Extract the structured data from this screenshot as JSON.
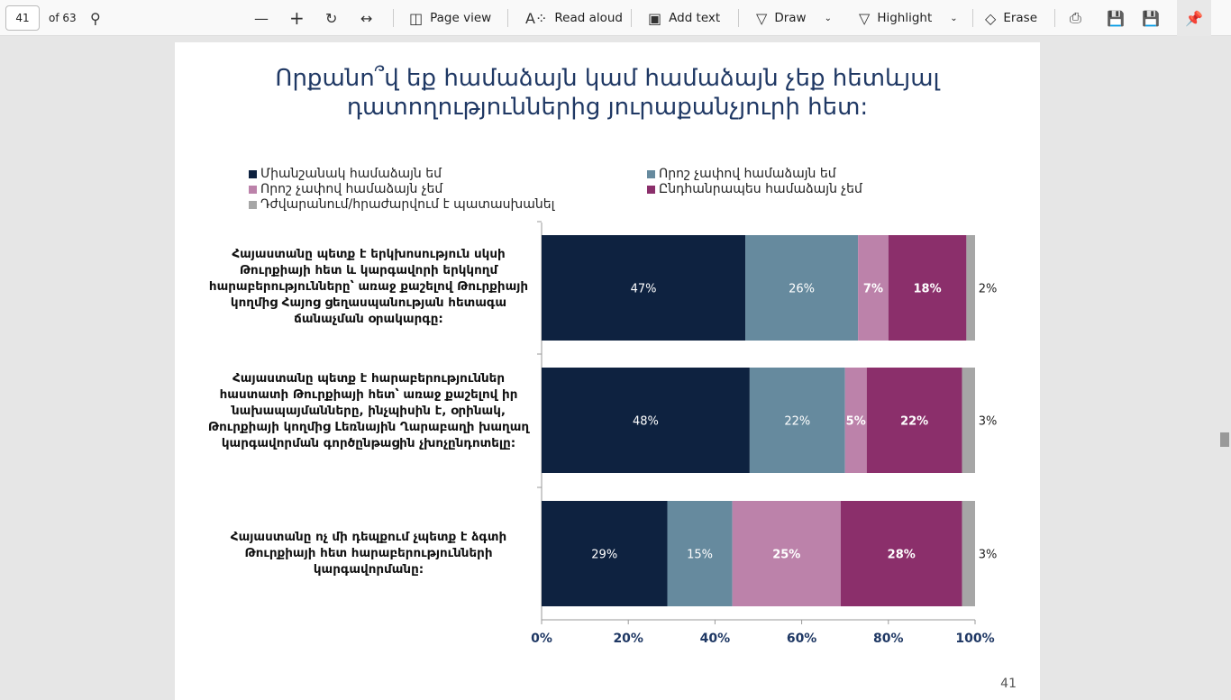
{
  "toolbar": {
    "page": "41",
    "of": "of 63",
    "page_view": "Page view",
    "read_aloud": "Read aloud",
    "add_text": "Add text",
    "draw": "Draw",
    "highlight": "Highlight",
    "erase": "Erase"
  },
  "page_number": "41",
  "chart_data": {
    "type": "bar",
    "orientation": "horizontal",
    "stacked": true,
    "title": "Որքանո՞վ եք համաձայն կամ համաձայն չեք հետևյալ դատողություններից յուրաքանչյուրի հետ:",
    "title_lines": [
      "Որքանո՞վ եք համաձայն կամ համաձայն չեք հետևյալ",
      "դատողություններից յուրաքանչյուրի հետ:"
    ],
    "categories": [
      "Հայաստանը պետք է երկխոսություն սկսի Թուրքիայի հետ և կարգավորի երկկողմ հարաբերությունները՝ առաջ քաշելով Թուրքիայի կողմից Հայոց ցեղասպանության հետագա ճանաչման օրակարգը:",
      "Հայաստանը պետք է հարաբերություններ հաստատի Թուրքիայի հետ՝ առաջ քաշելով իր նախապայմանները, ինչպիսին է, օրինակ, Թուրքիայի կողմից Լեռնային Ղարաբաղի խաղաղ կարգավորման գործընթացին չխոչընդոտելը:",
      "Հայաստանը ոչ մի դեպքում չպետք է ձգտի Թուրքիայի հետ հարաբերությունների կարգավորմանը:"
    ],
    "series": [
      {
        "name": "Միանշանակ համաձայն եմ",
        "color": "#0e2240",
        "values": [
          47,
          48,
          29
        ]
      },
      {
        "name": "Որոշ չափով համաձայն եմ",
        "color": "#668a9e",
        "values": [
          26,
          22,
          15
        ]
      },
      {
        "name": "Որոշ չափով համաձայն չեմ",
        "color": "#bc82aa",
        "values": [
          7,
          5,
          25
        ]
      },
      {
        "name": "Ընդհանրապես համաձայն չեմ",
        "color": "#8b2f6b",
        "values": [
          18,
          22,
          28
        ]
      },
      {
        "name": "Դժվարանում/հրաժարվում է պատասխանել",
        "color": "#a6a6a6",
        "values": [
          2,
          3,
          3
        ]
      }
    ],
    "xticks": [
      "0%",
      "20%",
      "40%",
      "60%",
      "80%",
      "100%"
    ],
    "xlim": [
      0,
      100
    ],
    "legend": "top"
  }
}
